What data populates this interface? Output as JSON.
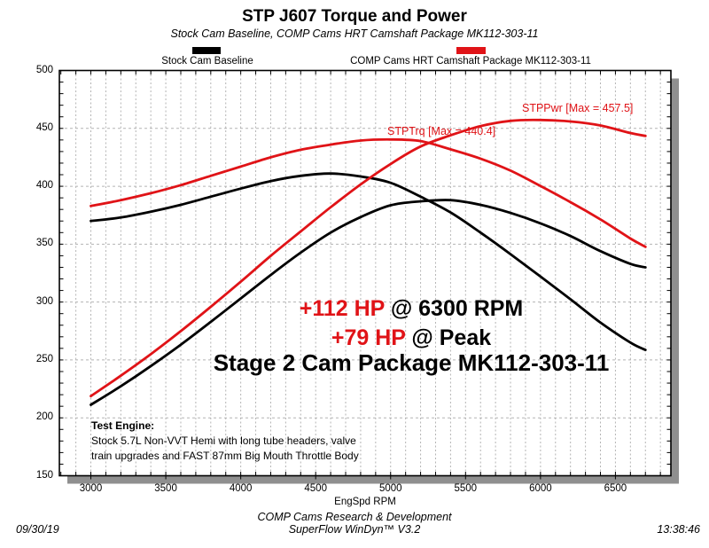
{
  "header": {
    "title": "STP J607 Torque and Power",
    "subtitle": "Stock Cam Baseline, COMP Cams HRT Camshaft Package MK112-303-11"
  },
  "legend": [
    {
      "label": "Stock Cam Baseline",
      "color": "#000000"
    },
    {
      "label": "COMP Cams HRT Camshaft Package MK112-303-11",
      "color": "#e01317"
    }
  ],
  "annotations": {
    "power_max_label": "STPPwr [Max = 457.5]",
    "torque_max_label": "STPTrq [Max = 440.4]",
    "gain1_red": "+112 HP",
    "gain1_black": " @ 6300 RPM",
    "gain2_red": "+79 HP",
    "gain2_black": " @ Peak",
    "stage_line": "Stage 2 Cam Package MK112-303-11",
    "test_engine_heading": "Test Engine:",
    "test_engine_line1": "Stock 5.7L Non-VVT Hemi with long tube headers, valve",
    "test_engine_line2": "train upgrades and FAST 87mm Big Mouth Throttle Body"
  },
  "footer": {
    "org": "COMP Cams Research & Development",
    "software": "SuperFlow WinDyn™ V3.2",
    "date": "09/30/19",
    "time": "13:38:46"
  },
  "chart_data": {
    "type": "line",
    "title": "STP J607 Torque and Power",
    "xlabel": "EngSpd RPM",
    "x_axis": {
      "label": "EngSpd RPM",
      "range": [
        2790,
        6870
      ],
      "major_ticks": [
        3000,
        3500,
        4000,
        4500,
        5000,
        5500,
        6000,
        6500
      ],
      "minor_step": 100
    },
    "y_axis": {
      "label": "",
      "range": [
        150,
        500
      ],
      "major_ticks": [
        500,
        450,
        400,
        350,
        300,
        250,
        200,
        150
      ],
      "minor_step": 10
    },
    "grid": {
      "vertical_minor_dashed": true,
      "horizontal_major_dashed": true
    },
    "legend_position": "top",
    "x": [
      3000,
      3200,
      3400,
      3600,
      3800,
      4000,
      4200,
      4400,
      4600,
      4800,
      5000,
      5200,
      5400,
      5600,
      5800,
      6000,
      6200,
      6400,
      6600,
      6700
    ],
    "series": [
      {
        "name": "Stock Cam Baseline Torque",
        "color": "#000000",
        "width": 2.8,
        "values": [
          370,
          373,
          378,
          384,
          391,
          398,
          404.5,
          409,
          411,
          408.5,
          403,
          391,
          377.4,
          360,
          341.4,
          322,
          302.4,
          282.3,
          265,
          258.7
        ]
      },
      {
        "name": "Stock Cam Baseline Power",
        "color": "#000000",
        "width": 2.8,
        "values": [
          211.3,
          227.3,
          244.7,
          263.2,
          282.9,
          303.1,
          323.4,
          342.7,
          360,
          373.4,
          383.6,
          387,
          388,
          384,
          377,
          368,
          357,
          344,
          333,
          330
        ]
      },
      {
        "name": "COMP Cams HRT Torque (STPTrq)",
        "color": "#e01317",
        "width": 2.8,
        "max": 440.4,
        "values": [
          383,
          388,
          394,
          401,
          409,
          417,
          425,
          431.5,
          436,
          439.5,
          440.4,
          439,
          431.9,
          423.9,
          413.5,
          400.2,
          386.3,
          371.4,
          354.9,
          347.7
        ]
      },
      {
        "name": "COMP Cams HRT Power (STPPwr)",
        "color": "#e01317",
        "width": 2.8,
        "max": 457.5,
        "values": [
          218.8,
          236.4,
          255,
          274.9,
          295.9,
          317.6,
          339.9,
          361,
          381.9,
          401.6,
          419.3,
          434.4,
          444,
          452,
          456.5,
          457.3,
          456,
          452.5,
          446,
          443.5
        ]
      }
    ]
  }
}
